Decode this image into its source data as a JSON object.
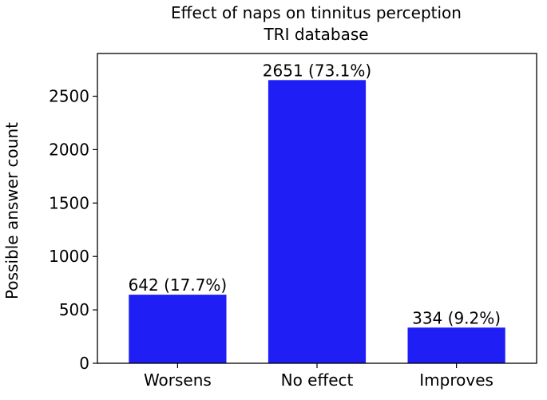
{
  "chart_data": {
    "type": "bar",
    "title": "Effect of naps on tinnitus perception",
    "subtitle": "TRI database",
    "xlabel": "",
    "ylabel": "Possible answer count",
    "categories": [
      "Worsens",
      "No effect",
      "Improves"
    ],
    "values": [
      642,
      2651,
      334
    ],
    "data_labels": [
      "642 (17.7%)",
      "2651 (73.1%)",
      "334 (9.2%)"
    ],
    "ylim": [
      0,
      2900
    ],
    "yticks": [
      0,
      500,
      1000,
      1500,
      2000,
      2500
    ],
    "ytick_labels": [
      "0",
      "500",
      "1000",
      "1500",
      "2000",
      "2500"
    ],
    "bar_color": "#1f1ff5",
    "grid": false,
    "legend": "none"
  }
}
